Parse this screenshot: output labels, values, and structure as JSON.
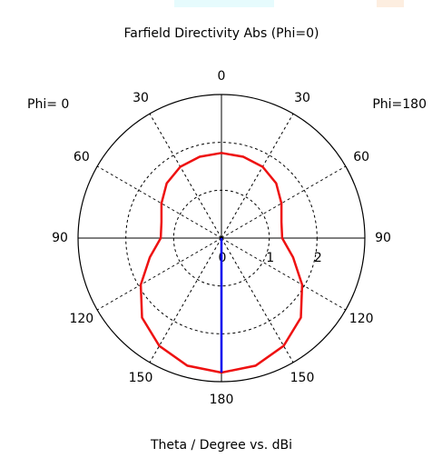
{
  "chart_data": {
    "type": "polar",
    "title": "Farfield Directivity Abs (Phi=0)",
    "xlabel": "Theta / Degree vs. dBi",
    "left_label": "Phi= 0",
    "right_label": "Phi=180",
    "theta": [
      0,
      15,
      30,
      45,
      60,
      75,
      90,
      105,
      120,
      135,
      150,
      165,
      180
    ],
    "values": [
      1.78,
      1.76,
      1.72,
      1.62,
      1.45,
      1.3,
      1.27,
      1.55,
      1.95,
      2.35,
      2.6,
      2.76,
      2.81
    ],
    "color": "#ee1111",
    "marker": {
      "theta": 180,
      "value": 2.81,
      "color": "#0000ee"
    },
    "rlim": [
      0,
      3
    ],
    "rticks": [
      0,
      1,
      2
    ],
    "thetaticks": [
      0,
      30,
      60,
      90,
      120,
      150,
      180
    ],
    "grid": true
  }
}
